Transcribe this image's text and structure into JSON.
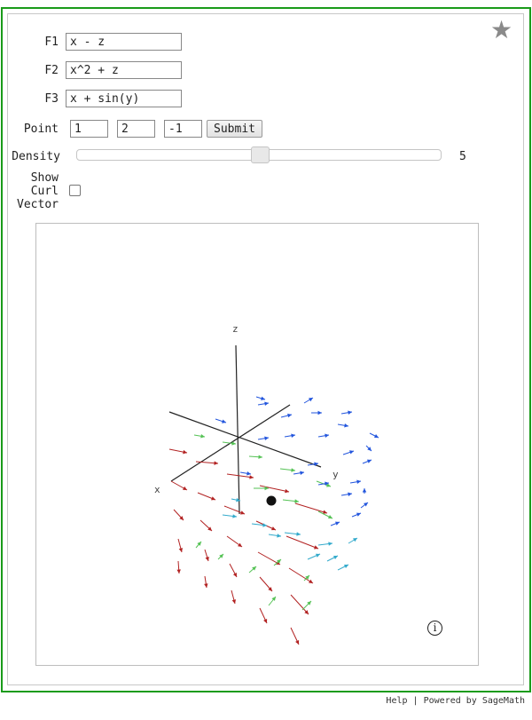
{
  "form": {
    "f1_label": "F1",
    "f1_value": "x - z",
    "f2_label": "F2",
    "f2_value": "x^2 + z",
    "f3_label": "F3",
    "f3_value": "x + sin(y)",
    "point_label": "Point",
    "point_x": "1",
    "point_y": "2",
    "point_z": "-1",
    "submit_label": "Submit",
    "density_label": "Density",
    "density_value": "5",
    "density_level": 0.5,
    "curl_label_line1": "Show",
    "curl_label_line2": "Curl",
    "curl_label_line3": "Vector",
    "curl_checked": false
  },
  "plot": {
    "axis_x": "x",
    "axis_y": "y",
    "axis_z": "z",
    "info_label": "i"
  },
  "footer": {
    "help": "Help",
    "separator": "|",
    "powered": "Powered by SageMath"
  },
  "icons": {
    "favorite": "star-icon",
    "info": "info-icon"
  },
  "colors": {
    "frame_green": "#1a9b1a",
    "arrow_red": "#b22222",
    "arrow_green": "#55c255",
    "arrow_blue": "#2255dd",
    "arrow_cyan": "#33aacc"
  }
}
